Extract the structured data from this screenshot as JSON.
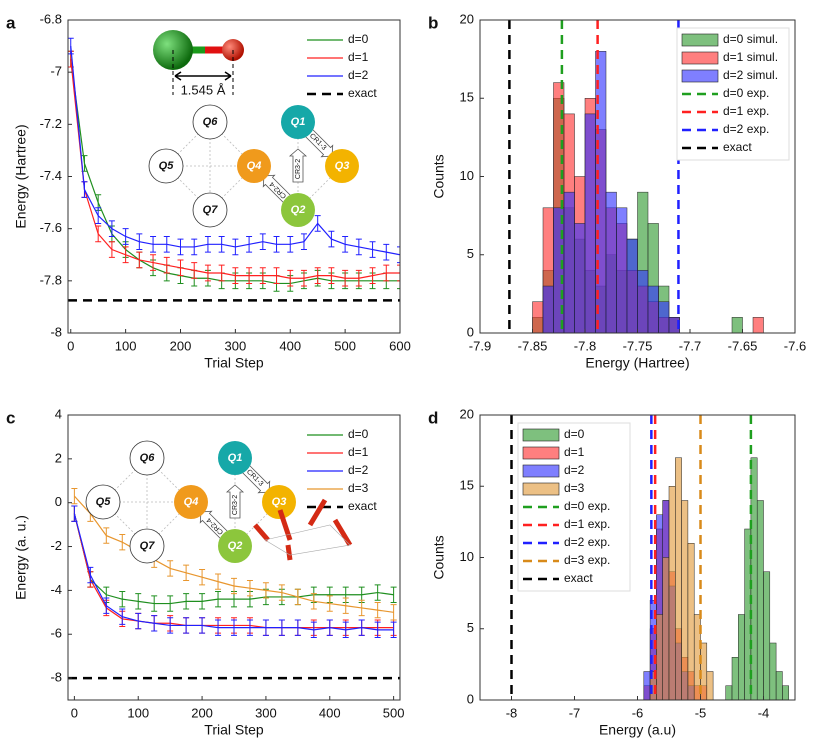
{
  "chart_data": [
    {
      "type": "line",
      "panel": "a",
      "xlabel": "Trial Step",
      "ylabel": "Energy (Hartree)",
      "xlim": [
        -5,
        600
      ],
      "xticks": [
        0,
        100,
        200,
        300,
        400,
        500,
        600
      ],
      "ylim": [
        -8,
        -6.8
      ],
      "yticks": [
        -8,
        -7.8,
        -7.6,
        -7.4,
        -7.2,
        -7,
        -6.8
      ],
      "x": [
        0,
        25,
        50,
        75,
        100,
        125,
        150,
        175,
        200,
        225,
        250,
        275,
        300,
        325,
        350,
        375,
        400,
        425,
        450,
        475,
        500,
        525,
        550,
        575,
        600
      ],
      "series": [
        {
          "name": "d=0",
          "color": "#1f8f1f",
          "error": 0.03,
          "values": [
            -6.95,
            -7.35,
            -7.5,
            -7.62,
            -7.68,
            -7.72,
            -7.75,
            -7.77,
            -7.78,
            -7.79,
            -7.79,
            -7.8,
            -7.8,
            -7.8,
            -7.8,
            -7.81,
            -7.81,
            -7.8,
            -7.79,
            -7.8,
            -7.8,
            -7.8,
            -7.8,
            -7.8,
            -7.8
          ]
        },
        {
          "name": "d=1",
          "color": "#ff2020",
          "error": 0.03,
          "values": [
            -6.95,
            -7.45,
            -7.62,
            -7.68,
            -7.7,
            -7.72,
            -7.73,
            -7.74,
            -7.75,
            -7.76,
            -7.77,
            -7.77,
            -7.78,
            -7.78,
            -7.78,
            -7.78,
            -7.79,
            -7.79,
            -7.78,
            -7.78,
            -7.79,
            -7.79,
            -7.78,
            -7.77,
            -7.77
          ]
        },
        {
          "name": "d=2",
          "color": "#2020ff",
          "error": 0.03,
          "values": [
            -6.9,
            -7.45,
            -7.55,
            -7.6,
            -7.63,
            -7.65,
            -7.66,
            -7.66,
            -7.67,
            -7.67,
            -7.66,
            -7.66,
            -7.67,
            -7.66,
            -7.65,
            -7.66,
            -7.66,
            -7.65,
            -7.58,
            -7.64,
            -7.66,
            -7.67,
            -7.68,
            -7.69,
            -7.7
          ]
        }
      ],
      "reference_lines": [
        {
          "name": "exact",
          "value": -7.875,
          "color": "#000000"
        }
      ],
      "legend": "upper right",
      "bond_length": "1.545 Å",
      "qubits": [
        "Q1",
        "Q2",
        "Q3",
        "Q4",
        "Q5",
        "Q6",
        "Q7"
      ],
      "gates": [
        "CR1-3",
        "CR3-2",
        "CR2-4"
      ]
    },
    {
      "type": "histogram",
      "panel": "b",
      "xlabel": "Energy (Hartree)",
      "ylabel": "Counts",
      "xlim": [
        -7.9,
        -7.6
      ],
      "xticks": [
        -7.9,
        -7.85,
        -7.8,
        -7.75,
        -7.7,
        -7.65,
        -7.6
      ],
      "ylim": [
        0,
        20
      ],
      "yticks": [
        0,
        5,
        10,
        15,
        20
      ],
      "bins": [
        -7.85,
        -7.84,
        -7.83,
        -7.82,
        -7.81,
        -7.8,
        -7.79,
        -7.78,
        -7.77,
        -7.76,
        -7.75,
        -7.74,
        -7.73,
        -7.72,
        -7.71,
        -7.7,
        -7.69,
        -7.68,
        -7.67,
        -7.66,
        -7.65,
        -7.64,
        -7.63
      ],
      "series": [
        {
          "name": "d=0 simul.",
          "color": "#2e9a2e",
          "values": [
            1,
            4,
            15,
            8,
            6,
            4,
            3,
            5,
            4,
            6,
            9,
            7,
            3,
            1,
            0,
            0,
            0,
            0,
            0,
            1,
            0,
            0
          ]
        },
        {
          "name": "d=1 simul.",
          "color": "#ff3030",
          "values": [
            2,
            8,
            16,
            14,
            10,
            15,
            13,
            8,
            7,
            4,
            3,
            2,
            1,
            1,
            0,
            0,
            0,
            0,
            0,
            0,
            0,
            1
          ]
        },
        {
          "name": "d=2 simul.",
          "color": "#3030ff",
          "values": [
            0,
            3,
            8,
            9,
            7,
            14,
            18,
            9,
            8,
            6,
            4,
            3,
            2,
            1,
            0,
            0,
            0,
            0,
            0,
            0,
            0,
            0
          ]
        }
      ],
      "reference_lines": [
        {
          "name": "d=0 exp.",
          "value": -7.822,
          "color": "#1f9f1f"
        },
        {
          "name": "d=1 exp.",
          "value": -7.788,
          "color": "#ff2020"
        },
        {
          "name": "d=2 exp.",
          "value": -7.711,
          "color": "#2020ff"
        },
        {
          "name": "exact",
          "value": -7.872,
          "color": "#000000"
        }
      ],
      "legend": "upper right"
    },
    {
      "type": "line",
      "panel": "c",
      "xlabel": "Trial Step",
      "ylabel": "Energy (a. u.)",
      "xlim": [
        -10,
        510
      ],
      "xticks": [
        0,
        100,
        200,
        300,
        400,
        500
      ],
      "ylim": [
        -9,
        4
      ],
      "yticks": [
        -8,
        -6,
        -4,
        -2,
        0,
        2,
        4
      ],
      "x": [
        0,
        25,
        50,
        75,
        100,
        125,
        150,
        175,
        200,
        225,
        250,
        275,
        300,
        325,
        350,
        375,
        400,
        425,
        450,
        475,
        500
      ],
      "series": [
        {
          "name": "d=0",
          "color": "#1f8f1f",
          "error": 0.35,
          "values": [
            -0.5,
            -3.5,
            -4.2,
            -4.4,
            -4.5,
            -4.6,
            -4.6,
            -4.5,
            -4.5,
            -4.4,
            -4.4,
            -4.4,
            -4.3,
            -4.3,
            -4.3,
            -4.2,
            -4.2,
            -4.2,
            -4.2,
            -4.1,
            -4.2
          ]
        },
        {
          "name": "d=1",
          "color": "#ff2020",
          "error": 0.35,
          "values": [
            -0.5,
            -3.5,
            -4.8,
            -5.3,
            -5.4,
            -5.5,
            -5.5,
            -5.6,
            -5.6,
            -5.6,
            -5.6,
            -5.6,
            -5.7,
            -5.7,
            -5.7,
            -5.7,
            -5.7,
            -5.7,
            -5.7,
            -5.7,
            -5.7
          ]
        },
        {
          "name": "d=2",
          "color": "#2020ff",
          "error": 0.35,
          "values": [
            -0.5,
            -3.3,
            -4.7,
            -5.2,
            -5.4,
            -5.5,
            -5.6,
            -5.6,
            -5.6,
            -5.7,
            -5.7,
            -5.7,
            -5.7,
            -5.7,
            -5.7,
            -5.8,
            -5.7,
            -5.8,
            -5.7,
            -5.8,
            -5.8
          ]
        },
        {
          "name": "d=3",
          "color": "#e8962e",
          "error": 0.35,
          "values": [
            0.3,
            -0.5,
            -1.5,
            -1.8,
            -2.2,
            -2.6,
            -3.0,
            -3.2,
            -3.4,
            -3.6,
            -3.8,
            -3.9,
            -4.0,
            -4.1,
            -4.3,
            -4.5,
            -4.6,
            -4.7,
            -4.8,
            -4.9,
            -5.0
          ]
        }
      ],
      "reference_lines": [
        {
          "name": "exact",
          "value": -8,
          "color": "#000000"
        }
      ],
      "legend": "upper right",
      "qubits": [
        "Q1",
        "Q2",
        "Q3",
        "Q4",
        "Q5",
        "Q6",
        "Q7"
      ],
      "gates": [
        "CR1-3",
        "CR3-2",
        "CR2-4"
      ]
    },
    {
      "type": "histogram",
      "panel": "d",
      "xlabel": "Energy (a.u)",
      "ylabel": "Counts",
      "xlim": [
        -8.5,
        -3.5
      ],
      "xticks": [
        -8,
        -7,
        -6,
        -5,
        -4
      ],
      "ylim": [
        0,
        20
      ],
      "yticks": [
        0,
        5,
        10,
        15,
        20
      ],
      "bins": [
        -6.0,
        -5.9,
        -5.8,
        -5.7,
        -5.6,
        -5.5,
        -5.4,
        -5.3,
        -5.2,
        -5.1,
        -5.0,
        -4.9,
        -4.8,
        -4.7,
        -4.6,
        -4.5,
        -4.4,
        -4.3,
        -4.2,
        -4.1,
        -4.0,
        -3.9,
        -3.8,
        -3.7,
        -3.6
      ],
      "series": [
        {
          "name": "d=0",
          "color": "#2e9a2e",
          "values": [
            0,
            0,
            0,
            0,
            0,
            0,
            0,
            0,
            0,
            0,
            0,
            0,
            0,
            0,
            1,
            3,
            6,
            12,
            17,
            14,
            9,
            4,
            2,
            1
          ]
        },
        {
          "name": "d=1",
          "color": "#ff3030",
          "values": [
            0,
            1,
            5,
            12,
            14,
            9,
            5,
            3,
            2,
            1,
            1,
            0,
            0,
            0,
            0,
            0,
            0,
            0,
            0,
            0,
            0,
            0,
            0,
            0
          ]
        },
        {
          "name": "d=2",
          "color": "#3030ff",
          "values": [
            0,
            2,
            7,
            13,
            14,
            8,
            4,
            2,
            1,
            0,
            0,
            0,
            0,
            0,
            0,
            0,
            0,
            0,
            0,
            0,
            0,
            0,
            0,
            0
          ]
        },
        {
          "name": "d=3",
          "color": "#e09a3a",
          "values": [
            0,
            0,
            2,
            6,
            10,
            15,
            17,
            14,
            11,
            6,
            4,
            2,
            0,
            0,
            0,
            0,
            0,
            0,
            0,
            0,
            0,
            0,
            0,
            0
          ]
        }
      ],
      "reference_lines": [
        {
          "name": "d=0 exp.",
          "value": -4.2,
          "color": "#1f9f1f"
        },
        {
          "name": "d=1 exp.",
          "value": -5.72,
          "color": "#ff2020"
        },
        {
          "name": "d=2 exp.",
          "value": -5.78,
          "color": "#2020ff"
        },
        {
          "name": "d=3 exp.",
          "value": -5.0,
          "color": "#d88a1a"
        },
        {
          "name": "exact",
          "value": -8,
          "color": "#000000"
        }
      ],
      "legend": "upper left"
    }
  ]
}
